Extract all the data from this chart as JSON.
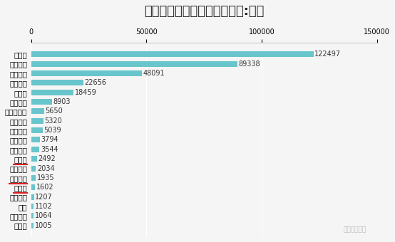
{
  "title": "主要运营商直流桩数量（单位:台）",
  "categories": [
    "嘉克网",
    "电王快充",
    "助桩",
    "江苏聪城",
    "开迈斯",
    "上汽安悦",
    "海南椰联",
    "特斯拉",
    "南京能堵",
    "万城万充",
    "中国普天",
    "云杉智慧",
    "深圳车电网",
    "万马爱充",
    "云快充",
    "南方电网",
    "星星充电",
    "国家电网",
    "特来电"
  ],
  "values": [
    1005,
    1064,
    1102,
    1207,
    1602,
    1935,
    2034,
    2492,
    3544,
    3794,
    5039,
    5320,
    5650,
    8903,
    18459,
    22656,
    48091,
    89338,
    122497
  ],
  "bar_color": "#69c5cc",
  "highlight_bars": [
    "特斯拉",
    "上汽安悦",
    "开迈斯"
  ],
  "highlight_underline_color": "#e02020",
  "xlim": [
    0,
    150000
  ],
  "xticks": [
    0,
    50000,
    100000,
    150000
  ],
  "background_color": "#f5f5f5",
  "title_fontsize": 13,
  "label_fontsize": 7.5,
  "value_fontsize": 7,
  "watermark": "汽车电子设计"
}
